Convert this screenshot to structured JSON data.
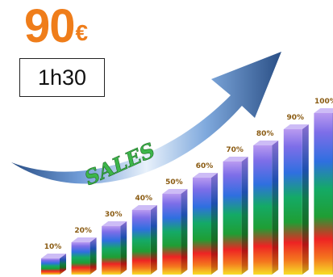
{
  "price": {
    "amount": "90",
    "currency": "€"
  },
  "duration": "1h30",
  "arrow_label": "SALES",
  "colors": {
    "price": "#ef7d1a",
    "arrow_dark": "#2a4f86",
    "arrow_light": "#7fa9dd",
    "arrow_text": "#3cb54a",
    "percent_label": "#8a5b12"
  },
  "chart_data": {
    "type": "bar",
    "title": "",
    "xlabel": "",
    "ylabel": "",
    "ylim": [
      0,
      100
    ],
    "grid": false,
    "categories": [
      "10%",
      "20%",
      "30%",
      "40%",
      "50%",
      "60%",
      "70%",
      "80%",
      "90%",
      "100%"
    ],
    "values": [
      10,
      20,
      30,
      40,
      50,
      60,
      70,
      80,
      90,
      100
    ],
    "data_labels": [
      "10%",
      "20%",
      "30%",
      "40%",
      "50%",
      "60%",
      "70%",
      "80%",
      "90%",
      "100%"
    ]
  }
}
